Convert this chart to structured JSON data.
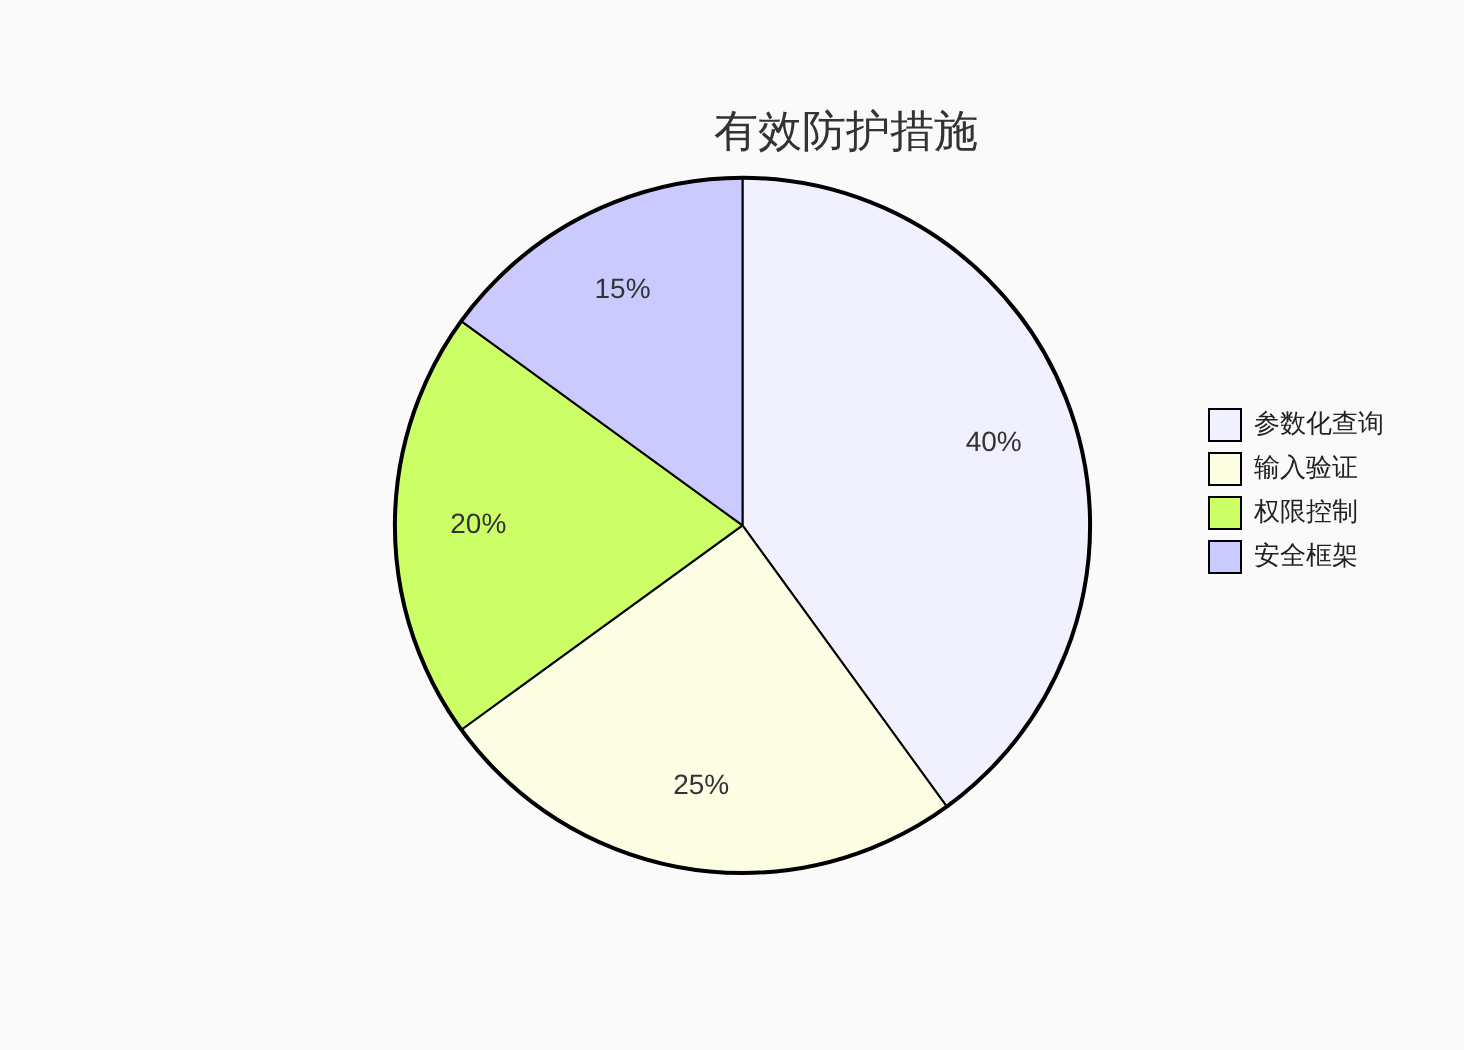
{
  "chart_data": {
    "type": "pie",
    "title": "有效防护措施",
    "categories": [
      "参数化查询",
      "输入验证",
      "权限控制",
      "安全框架"
    ],
    "values": [
      40,
      25,
      20,
      15
    ],
    "value_labels": [
      "40%",
      "25%",
      "20%",
      "15%"
    ],
    "colors": [
      "#f0f0ff",
      "#fdfde3",
      "#ccff66",
      "#cacaff"
    ],
    "legend": "right"
  }
}
